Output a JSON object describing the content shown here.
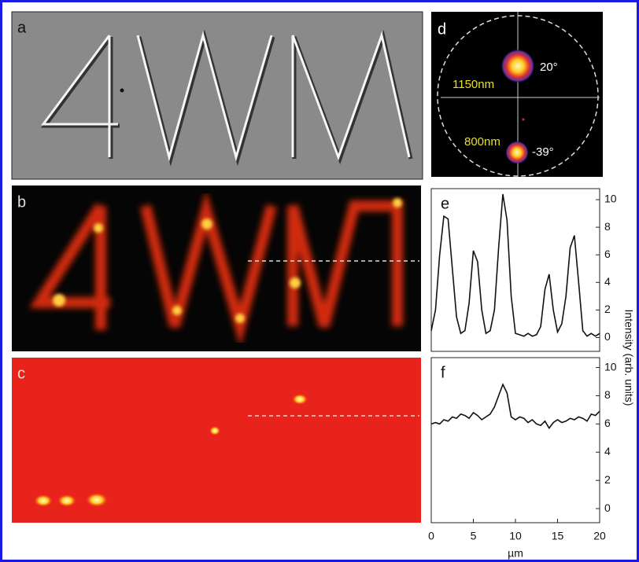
{
  "image_panels": [
    {
      "label": "a"
    },
    {
      "label": "b"
    },
    {
      "label": "c"
    },
    {
      "label": "d",
      "annotations": [
        "20°",
        "1150nm",
        "800nm",
        "-39°"
      ]
    }
  ],
  "chart_data": [
    {
      "type": "line",
      "label": "e",
      "color": "#111111",
      "x": [
        0,
        0.5,
        1,
        1.5,
        2,
        2.5,
        3,
        3.5,
        4,
        4.5,
        5,
        5.5,
        6,
        6.5,
        7,
        7.5,
        8,
        8.5,
        9,
        9.5,
        10,
        10.5,
        11,
        11.5,
        12,
        12.5,
        13,
        13.5,
        14,
        14.5,
        15,
        15.5,
        16,
        16.5,
        17,
        17.5,
        18,
        18.5,
        19,
        19.5,
        20
      ],
      "values": [
        0.5,
        2,
        6,
        8.8,
        8.6,
        5,
        1.5,
        0.3,
        0.5,
        2.5,
        6.3,
        5.5,
        2,
        0.3,
        0.5,
        2,
        6.5,
        10.4,
        8.5,
        3,
        0.3,
        0.2,
        0.1,
        0.3,
        0.1,
        0.2,
        0.8,
        3.5,
        4.6,
        2,
        0.4,
        1,
        3,
        6.5,
        7.4,
        4,
        0.5,
        0.1,
        0.3,
        0.1,
        0.3
      ],
      "xlim": [
        0,
        20
      ],
      "ylim": [
        -1,
        10.8
      ],
      "yticks": [
        0,
        2,
        4,
        6,
        8,
        10
      ]
    },
    {
      "type": "line",
      "label": "f",
      "color": "#111111",
      "x": [
        0,
        0.5,
        1,
        1.5,
        2,
        2.5,
        3,
        3.5,
        4,
        4.5,
        5,
        5.5,
        6,
        6.5,
        7,
        7.5,
        8,
        8.5,
        9,
        9.5,
        10,
        10.5,
        11,
        11.5,
        12,
        12.5,
        13,
        13.5,
        14,
        14.5,
        15,
        15.5,
        16,
        16.5,
        17,
        17.5,
        18,
        18.5,
        19,
        19.5,
        20
      ],
      "values": [
        6,
        6.1,
        6,
        6.3,
        6.2,
        6.5,
        6.4,
        6.7,
        6.6,
        6.4,
        6.8,
        6.6,
        6.3,
        6.5,
        6.7,
        7.2,
        8,
        8.8,
        8.2,
        6.5,
        6.3,
        6.5,
        6.4,
        6.1,
        6.3,
        6,
        5.9,
        6.2,
        5.7,
        6.1,
        6.3,
        6.1,
        6.2,
        6.4,
        6.3,
        6.5,
        6.4,
        6.2,
        6.7,
        6.6,
        6.9
      ],
      "xlim": [
        0,
        20
      ],
      "xticks": [
        0,
        5,
        10,
        15,
        20
      ],
      "ylim": [
        -1,
        10.7
      ],
      "yticks": [
        0,
        2,
        4,
        6,
        8,
        10
      ],
      "xlabel": "µm",
      "ylabel": "Intensity (arb. units)"
    }
  ]
}
